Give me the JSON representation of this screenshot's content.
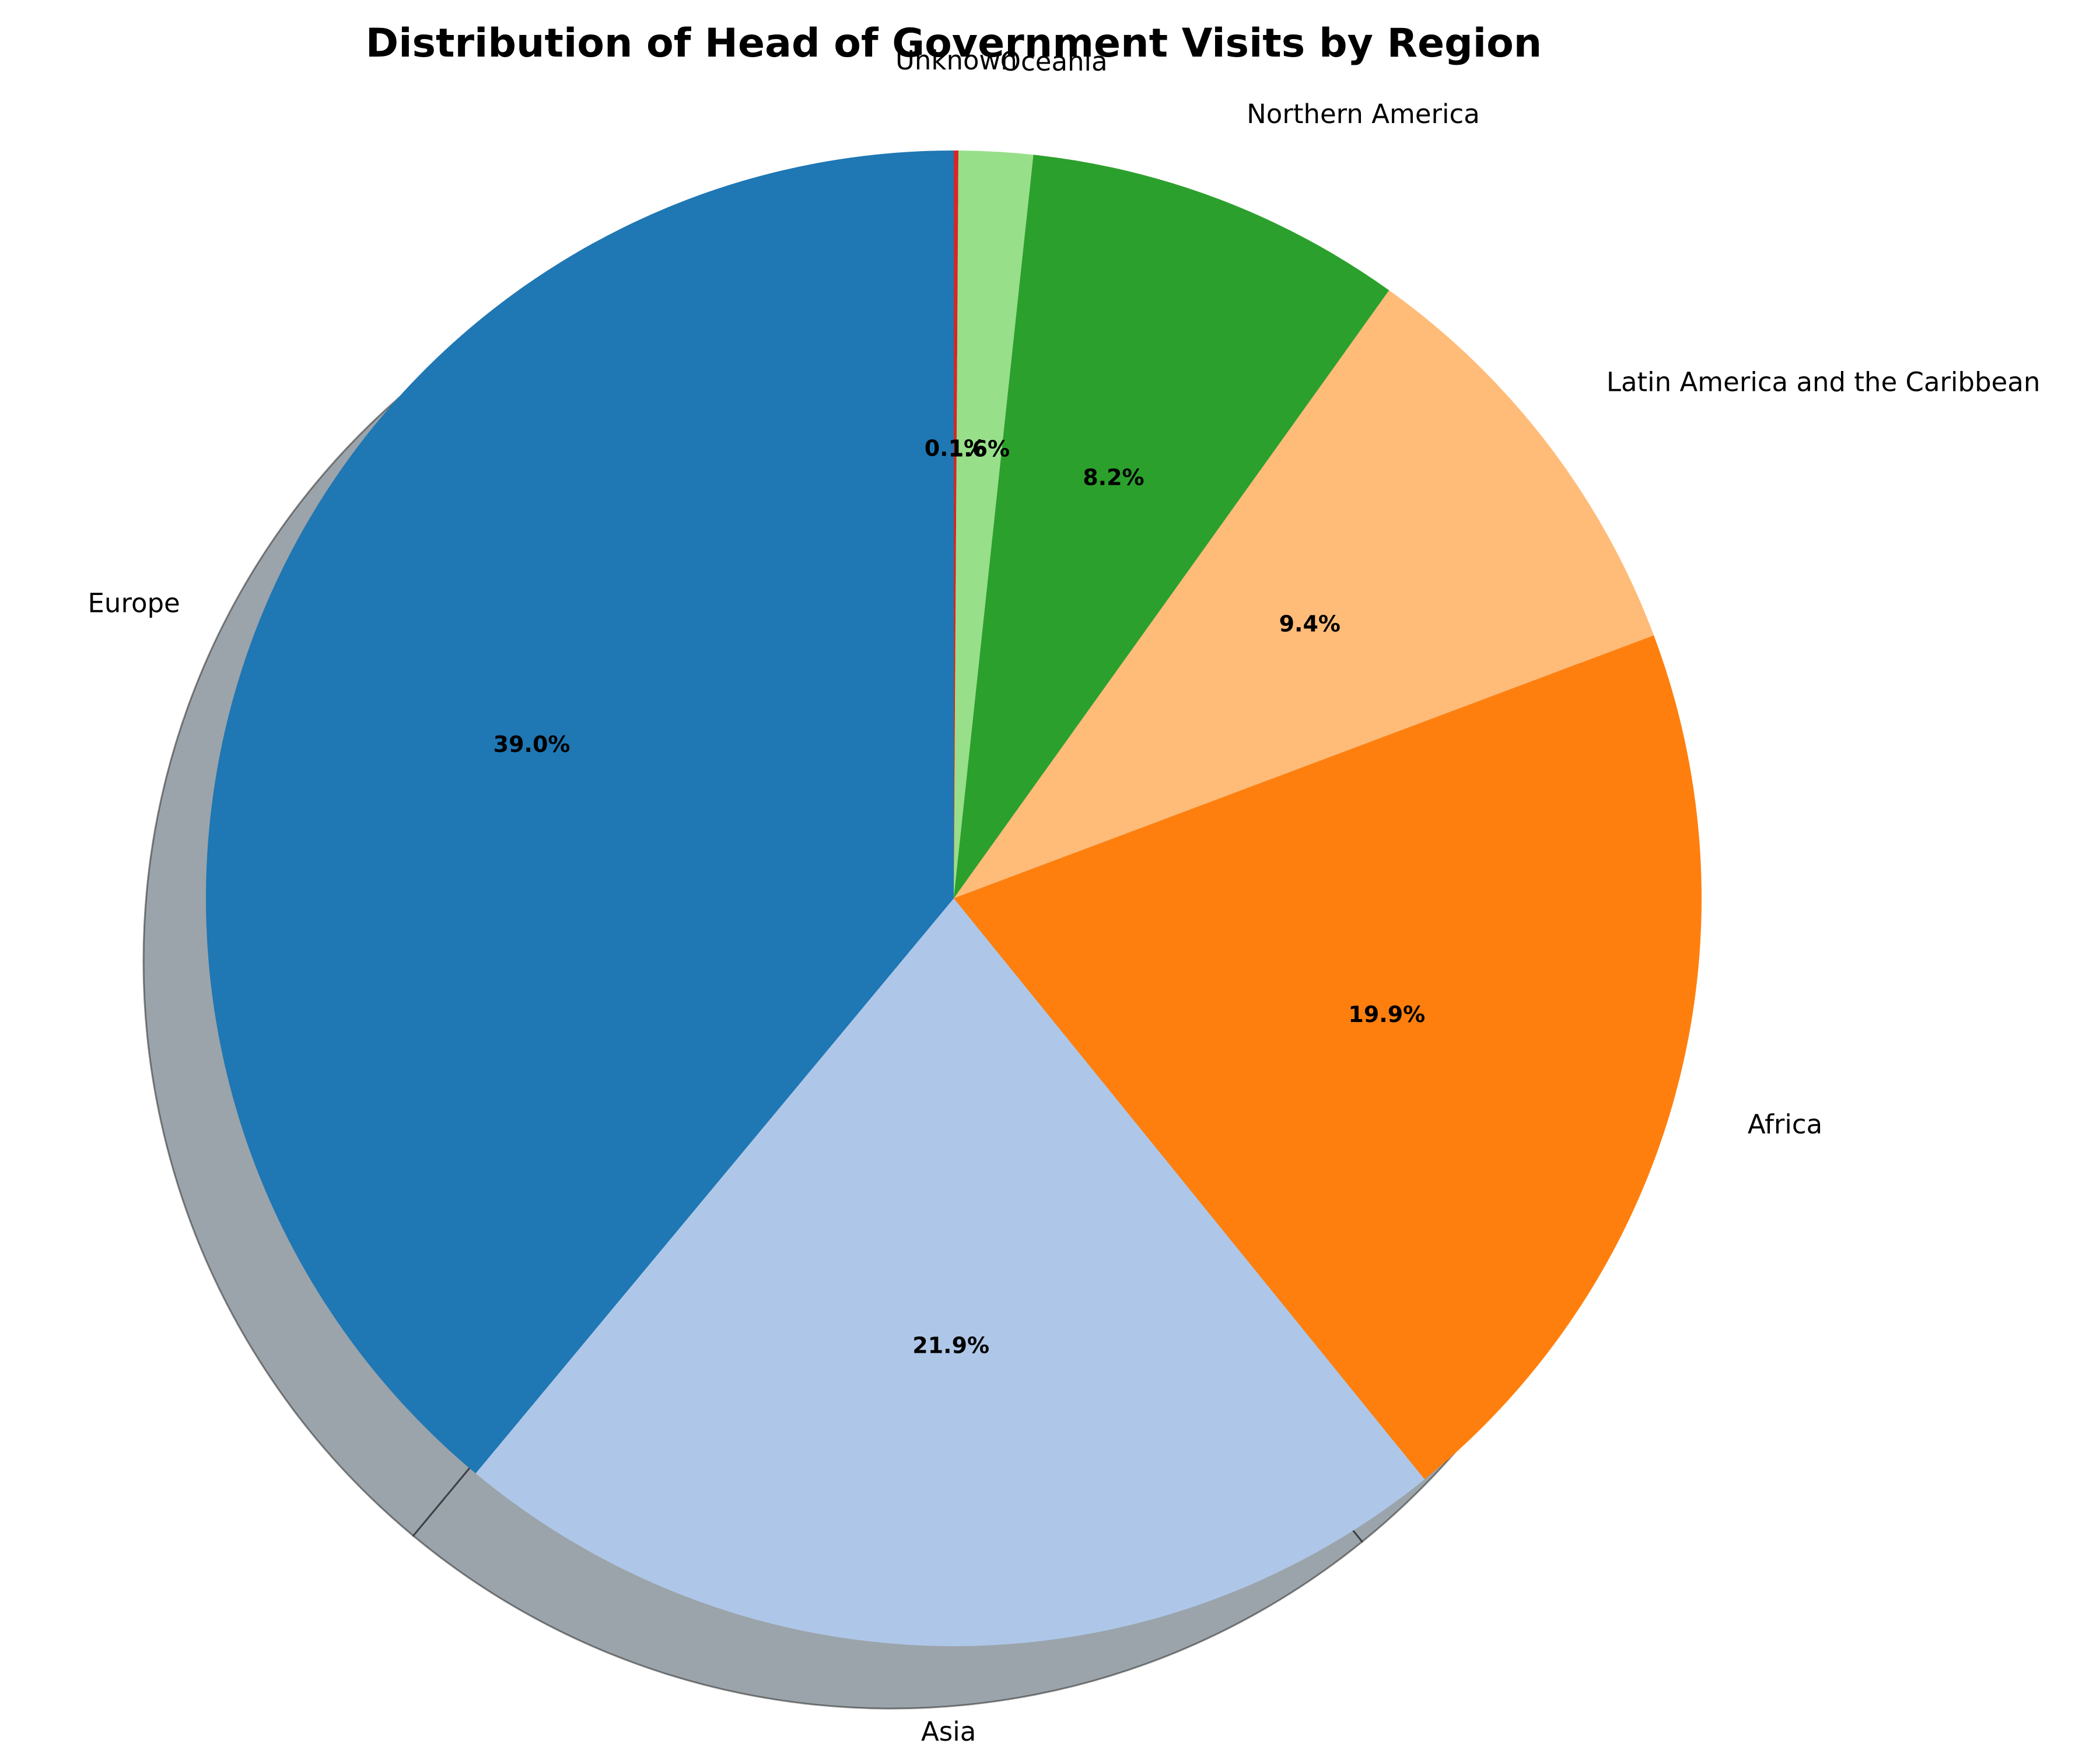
{
  "chart_data": {
    "type": "pie",
    "title": "Distribution of Head of Government Visits by Region",
    "start_angle_deg": 90,
    "direction": "clockwise",
    "shadow": true,
    "slices": [
      {
        "label": "Unknown",
        "value": 0.1,
        "pct_label": "0.1%",
        "color": "#d62728"
      },
      {
        "label": "Oceania",
        "value": 1.6,
        "pct_label": "1.6%",
        "color": "#98df8a"
      },
      {
        "label": "Northern America",
        "value": 8.2,
        "pct_label": "8.2%",
        "color": "#2ca02c"
      },
      {
        "label": "Latin America and the Caribbean",
        "value": 9.4,
        "pct_label": "9.4%",
        "color": "#ffbb78"
      },
      {
        "label": "Africa",
        "value": 19.9,
        "pct_label": "19.9%",
        "color": "#ff7f0e"
      },
      {
        "label": "Asia",
        "value": 21.9,
        "pct_label": "21.9%",
        "color": "#aec7e8"
      },
      {
        "label": "Europe",
        "value": 39.0,
        "pct_label": "39.0%",
        "color": "#1f77b4"
      }
    ]
  }
}
